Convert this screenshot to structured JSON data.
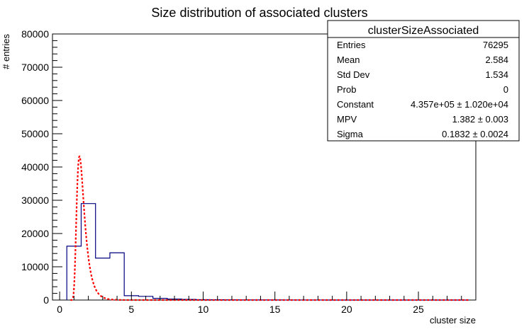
{
  "chart_data": {
    "type": "bar",
    "title": "Size distribution of associated clusters",
    "xlabel": "cluster size",
    "ylabel": "# entries",
    "xlim": [
      -0.5,
      29
    ],
    "ylim": [
      0,
      80000
    ],
    "x_ticks": [
      0,
      5,
      10,
      15,
      20,
      25
    ],
    "y_ticks": [
      0,
      10000,
      20000,
      30000,
      40000,
      50000,
      60000,
      70000,
      80000
    ],
    "histogram": {
      "bin_edges": [
        0.5,
        1.5,
        2.5,
        3.5,
        4.5,
        5.5,
        6.5,
        7.5,
        8.5,
        9.5,
        10.5,
        11.5,
        12.5,
        13.5,
        14.5,
        15.5,
        16.5,
        17.5,
        18.5,
        19.5,
        20.5,
        21.5,
        22.5,
        23.5,
        24.5,
        25.5,
        26.5,
        27.5,
        28.5
      ],
      "values": [
        16200,
        29000,
        12600,
        14200,
        1300,
        1100,
        500,
        300,
        200,
        100,
        80,
        50,
        40,
        30,
        20,
        15,
        10,
        8,
        6,
        5,
        4,
        3,
        3,
        2,
        2,
        1,
        1,
        1
      ],
      "line_color": "#000080"
    },
    "fit": {
      "function": "landau",
      "constant": 435700,
      "mpv": 1.382,
      "sigma": 0.1832,
      "color": "#ff0000"
    },
    "stats_box": {
      "title": "clusterSizeAssociated",
      "rows": [
        {
          "label": "Entries",
          "value": "76295"
        },
        {
          "label": "Mean",
          "value": "2.584"
        },
        {
          "label": "Std Dev",
          "value": "1.534"
        },
        {
          "label": "Prob",
          "value": "0"
        },
        {
          "label": "Constant",
          "value": "4.357e+05 ± 1.020e+04"
        },
        {
          "label": "MPV",
          "value": "1.382 ± 0.003"
        },
        {
          "label": "Sigma",
          "value": "0.1832 ± 0.0024"
        }
      ]
    }
  }
}
